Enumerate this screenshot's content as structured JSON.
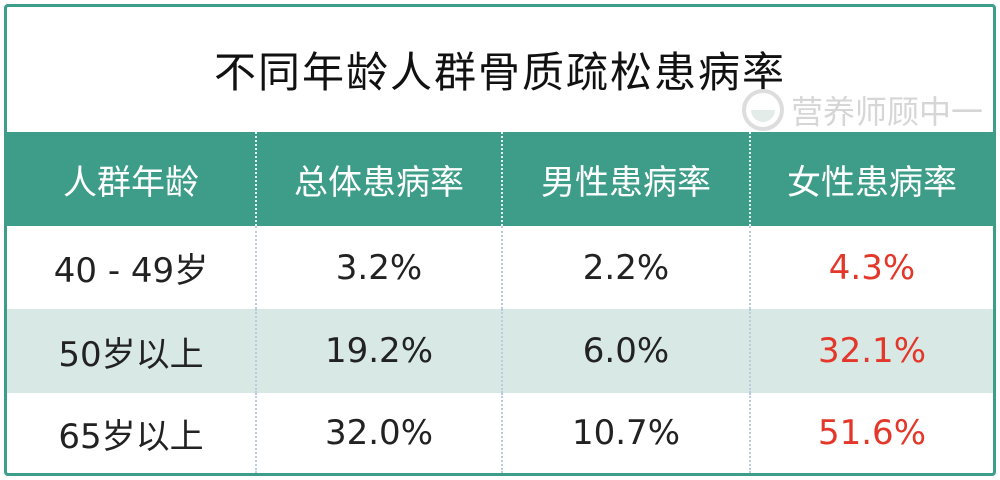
{
  "header": {
    "title": "不同年龄人群骨质疏松患病率",
    "watermark": "营养师顾中一"
  },
  "table": {
    "columns": [
      "人群年龄",
      "总体患病率",
      "男性患病率",
      "女性患病率"
    ],
    "rows": [
      [
        "40 - 49岁",
        "3.2%",
        "2.2%",
        "4.3%"
      ],
      [
        "50岁以上",
        "19.2%",
        "6.0%",
        "32.1%"
      ],
      [
        "65岁以上",
        "32.0%",
        "10.7%",
        "51.6%"
      ]
    ]
  }
}
